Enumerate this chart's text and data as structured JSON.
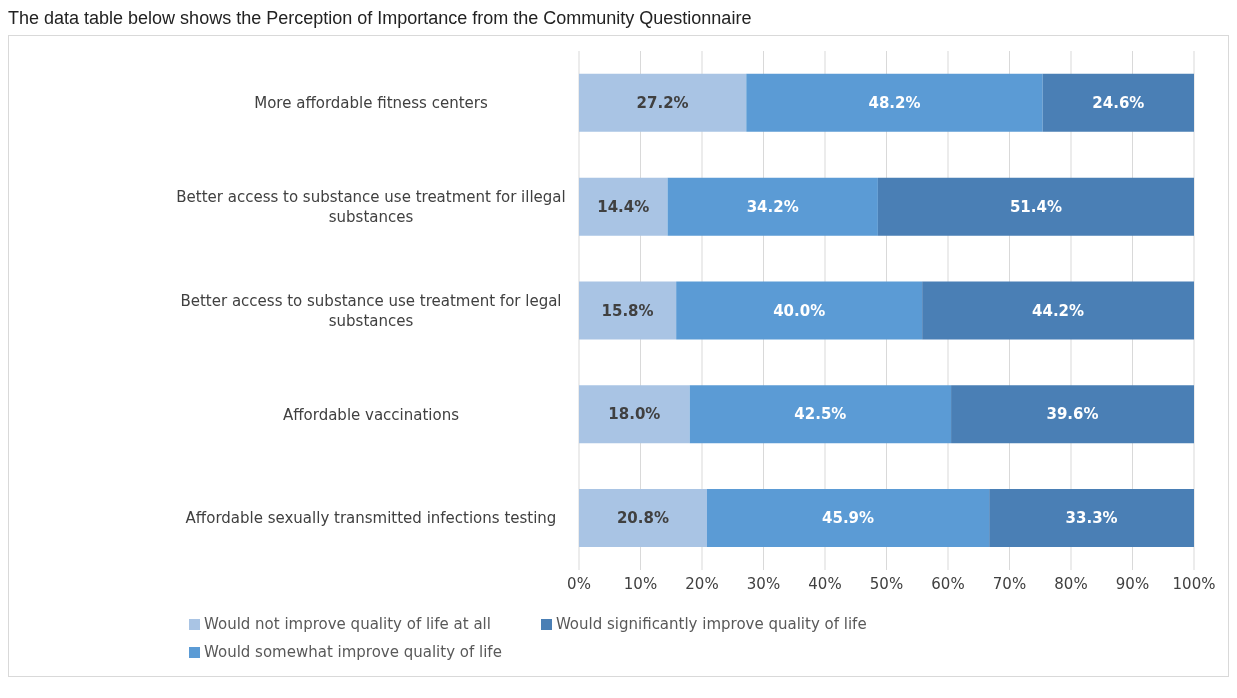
{
  "chart_data": {
    "type": "bar",
    "orientation": "horizontal",
    "stacked": true,
    "title": "The data table below shows the Perception of Importance from the Community Questionnaire",
    "categories": [
      "More affordable fitness centers",
      "Better access to substance use treatment for illegal substances",
      "Better access to substance use treatment for legal substances",
      "Affordable vaccinations",
      "Affordable sexually transmitted infections testing"
    ],
    "series": [
      {
        "name": "Would not improve quality of life at all",
        "color": "#a9c4e4",
        "values": [
          27.2,
          14.4,
          15.8,
          18.0,
          20.8
        ],
        "value_labels": [
          "27.2%",
          "14.4%",
          "15.8%",
          "18.0%",
          "20.8%"
        ]
      },
      {
        "name": "Would somewhat improve quality of life",
        "color": "#5b9bd5",
        "values": [
          48.2,
          34.2,
          40.0,
          42.5,
          45.9
        ],
        "value_labels": [
          "48.2%",
          "34.2%",
          "40.0%",
          "42.5%",
          "45.9%"
        ]
      },
      {
        "name": "Would significantly improve quality of life",
        "color": "#4a7fb5",
        "values": [
          24.6,
          51.4,
          44.2,
          39.6,
          33.3
        ],
        "value_labels": [
          "24.6%",
          "51.4%",
          "44.2%",
          "39.6%",
          "33.3%"
        ]
      }
    ],
    "xlim": [
      0,
      100
    ],
    "xticks": [
      {
        "value": 0,
        "label": "0%"
      },
      {
        "value": 10,
        "label": "10%"
      },
      {
        "value": 20,
        "label": "20%"
      },
      {
        "value": 30,
        "label": "30%"
      },
      {
        "value": 40,
        "label": "40%"
      },
      {
        "value": 50,
        "label": "50%"
      },
      {
        "value": 60,
        "label": "60%"
      },
      {
        "value": 70,
        "label": "70%"
      },
      {
        "value": 80,
        "label": "80%"
      },
      {
        "value": 90,
        "label": "90%"
      },
      {
        "value": 100,
        "label": "100%"
      }
    ],
    "grid": "x",
    "legend": "bottom"
  }
}
